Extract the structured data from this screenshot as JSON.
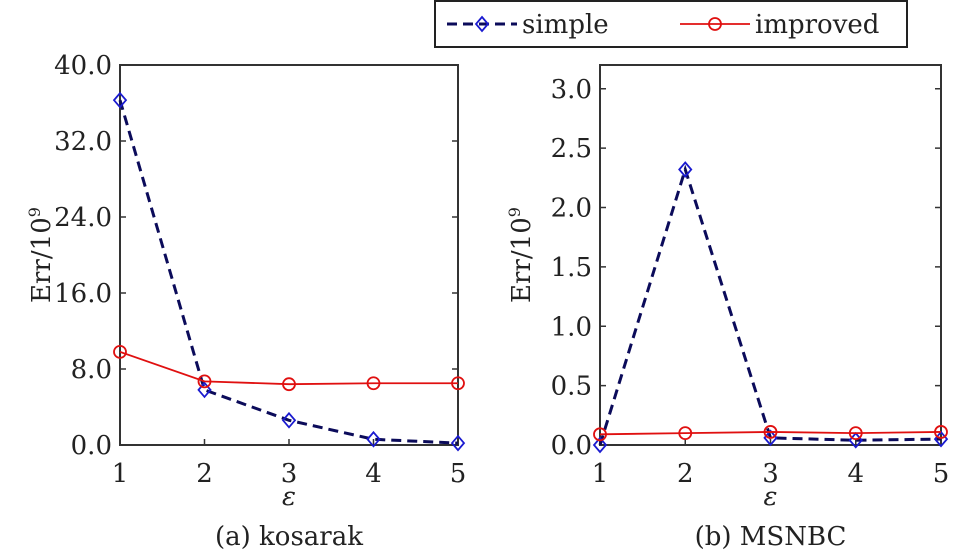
{
  "legend": {
    "simple": "simple",
    "improved": "improved"
  },
  "colors": {
    "simple": "#0b0b5a",
    "simple_marker": "#1a1ad0",
    "improved": "#e01010"
  },
  "chart_data": [
    {
      "type": "line",
      "title": "(a) kosarak",
      "xlabel": "ε",
      "ylabel": "Err/10",
      "ylabel_sup": "9",
      "x": [
        1,
        2,
        3,
        4,
        5
      ],
      "xlim": [
        1,
        5
      ],
      "ylim": [
        0,
        40
      ],
      "yticks": [
        "0.0",
        "8.0",
        "16.0",
        "24.0",
        "32.0",
        "40.0"
      ],
      "ytick_values": [
        0,
        8,
        16,
        24,
        32,
        40
      ],
      "series": [
        {
          "name": "simple",
          "values": [
            36.3,
            5.8,
            2.6,
            0.6,
            0.2
          ]
        },
        {
          "name": "improved",
          "values": [
            9.8,
            6.7,
            6.4,
            6.5,
            6.5
          ]
        }
      ]
    },
    {
      "type": "line",
      "title": "(b) MSNBC",
      "xlabel": "ε",
      "ylabel": "Err/10",
      "ylabel_sup": "9",
      "x": [
        1,
        2,
        3,
        4,
        5
      ],
      "xlim": [
        1,
        5
      ],
      "ylim": [
        0,
        3.2
      ],
      "yticks": [
        "0.0",
        "0.5",
        "1.0",
        "1.5",
        "2.0",
        "2.5",
        "3.0"
      ],
      "ytick_values": [
        0,
        0.5,
        1.0,
        1.5,
        2.0,
        2.5,
        3.0
      ],
      "series": [
        {
          "name": "simple",
          "values": [
            0.0,
            2.32,
            0.06,
            0.04,
            0.05
          ]
        },
        {
          "name": "improved",
          "values": [
            0.09,
            0.1,
            0.11,
            0.1,
            0.11
          ]
        }
      ]
    }
  ]
}
